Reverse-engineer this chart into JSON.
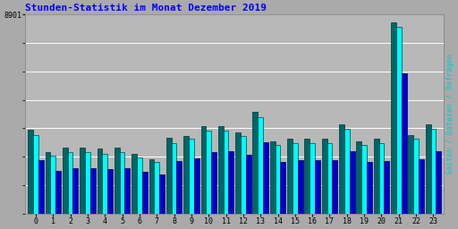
{
  "title": "Stunden-Statistik im Monat Dezember 2019",
  "ylabel_right": "Seiten / Dateien / Anfragen",
  "hours": [
    0,
    1,
    2,
    3,
    4,
    5,
    6,
    7,
    8,
    9,
    10,
    11,
    12,
    13,
    14,
    15,
    16,
    17,
    18,
    19,
    20,
    21,
    22,
    23
  ],
  "seiten": [
    420,
    310,
    330,
    330,
    325,
    330,
    300,
    275,
    380,
    390,
    440,
    440,
    410,
    510,
    365,
    375,
    375,
    375,
    450,
    365,
    375,
    960,
    395,
    450
  ],
  "dateien": [
    395,
    290,
    310,
    310,
    300,
    308,
    280,
    260,
    355,
    375,
    415,
    415,
    388,
    485,
    345,
    355,
    355,
    355,
    428,
    345,
    355,
    940,
    375,
    428
  ],
  "anfragen": [
    270,
    215,
    228,
    228,
    222,
    228,
    208,
    195,
    262,
    276,
    308,
    315,
    295,
    358,
    261,
    268,
    268,
    268,
    315,
    258,
    262,
    705,
    275,
    315
  ],
  "color_seiten": "#006666",
  "color_dateien": "#00ffff",
  "color_anfragen": "#0000cc",
  "background_color": "#aaaaaa",
  "plot_background": "#b8b8b8",
  "title_color": "#0000ff",
  "ylabel_color": "#00cccc",
  "ymax": 1000,
  "ytick_val": 1000,
  "ytick_label": "8901",
  "bar_width": 0.3,
  "n_gridlines": 7
}
